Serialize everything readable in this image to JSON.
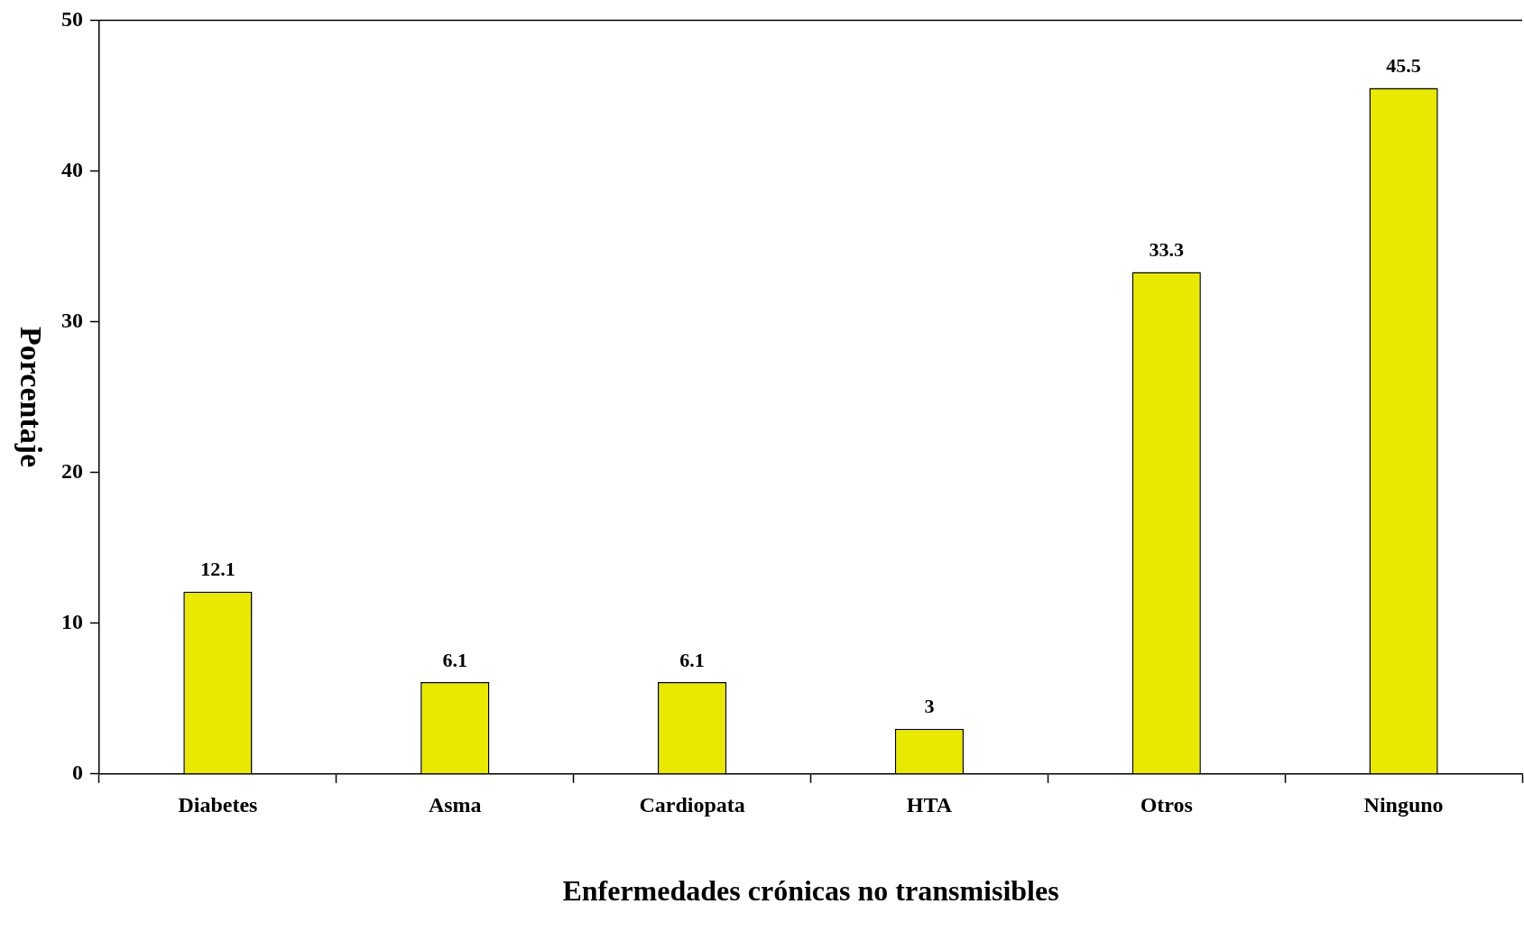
{
  "chart_data": {
    "type": "bar",
    "xlabel": "Enfermedades crónicas no transmisibles",
    "ylabel": "Porcentaje",
    "categories": [
      "Diabetes",
      "Asma",
      "Cardiopata",
      "HTA",
      "Otros",
      "Ninguno"
    ],
    "values": [
      12.1,
      6.1,
      6.1,
      3,
      33.3,
      45.5
    ],
    "color": "#e8e800",
    "ylim": [
      0,
      50
    ],
    "yticks": [
      0,
      10,
      20,
      30,
      40,
      50
    ],
    "grid": false,
    "data_labels": true
  }
}
